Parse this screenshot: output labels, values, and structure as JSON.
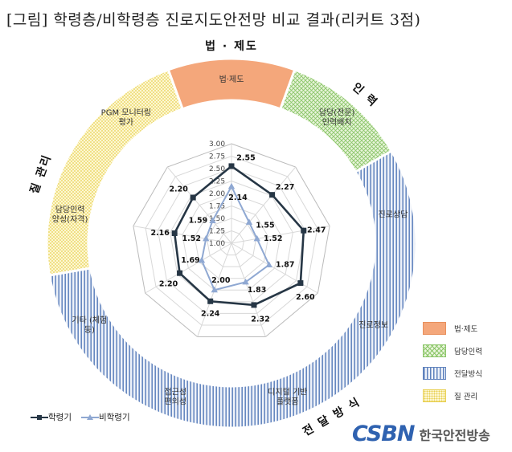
{
  "title": "[그림] 학령층/비학령층 진로지도안전망 비교 결과(리커트 3점)",
  "groups": [
    {
      "name": "법 · 제도",
      "color": "#f4a77b"
    },
    {
      "name": "인 력",
      "color": "#b7dd93"
    },
    {
      "name": "전 달 방 식",
      "color": "#a9bedf"
    },
    {
      "name": "질 관리",
      "color": "#f7e38b"
    }
  ],
  "group_legend": [
    "법·제도",
    "담당인력",
    "전달방식",
    "질 관리"
  ],
  "chart_data": {
    "type": "radar",
    "axes": [
      "법·제도",
      "담당(전문) 인력배치",
      "진로상담",
      "진로정보",
      "디지털 기반 플랫폼",
      "접근성 편의성",
      "기타 (체험 등)",
      "담당인력 양성(자격)",
      "PGM 모니터링 평가"
    ],
    "ticks": [
      "1.00",
      "1.25",
      "1.50",
      "1.75",
      "2.00",
      "2.25",
      "2.50",
      "2.75",
      "3.00"
    ],
    "rlim": [
      1,
      3
    ],
    "series": [
      {
        "name": "학령기",
        "color": "#263645",
        "values": [
          2.55,
          2.27,
          2.47,
          2.6,
          2.32,
          2.24,
          2.2,
          2.16,
          2.2
        ]
      },
      {
        "name": "비학령기",
        "color": "#8fa8d2",
        "values": [
          2.14,
          1.55,
          1.52,
          1.87,
          1.83,
          2.0,
          1.69,
          1.52,
          1.59
        ]
      }
    ],
    "labels_high": [
      "2.55",
      "2.27",
      "2.47",
      "2.60",
      "2.32",
      "2.24",
      "2.20",
      "2.16",
      "2.20"
    ],
    "labels_low": [
      "2.14",
      "1.55",
      "1.52",
      "1.87",
      "1.83",
      "2.00",
      "1.69",
      "1.52",
      "1.59"
    ]
  },
  "logo": {
    "mark": "CSBN",
    "text": "한국안전방송"
  }
}
